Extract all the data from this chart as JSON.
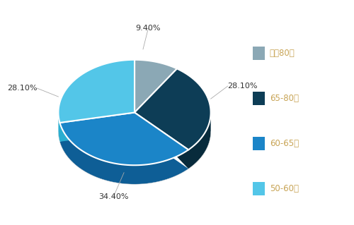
{
  "labels": [
    "大于80元",
    "65-80元",
    "60-65元",
    "50-60元"
  ],
  "values": [
    9.4,
    28.1,
    34.4,
    28.1
  ],
  "colors": [
    "#8ba8b5",
    "#0d3d56",
    "#1b85c8",
    "#53c6e8"
  ],
  "depth_colors": [
    "#6a8a99",
    "#082b3c",
    "#0e5e96",
    "#2aaed0"
  ],
  "label_texts": [
    "9.40%",
    "28.10%",
    "34.40%",
    "28.10%"
  ],
  "legend_labels": [
    "大于80元",
    "65-80元",
    "60-65元",
    "50-60元"
  ],
  "legend_colors": [
    "#8ba8b5",
    "#0d3d56",
    "#1b85c8",
    "#53c6e8"
  ],
  "background_color": "#ffffff",
  "text_color": "#c8a455",
  "label_line_color": "#999999"
}
